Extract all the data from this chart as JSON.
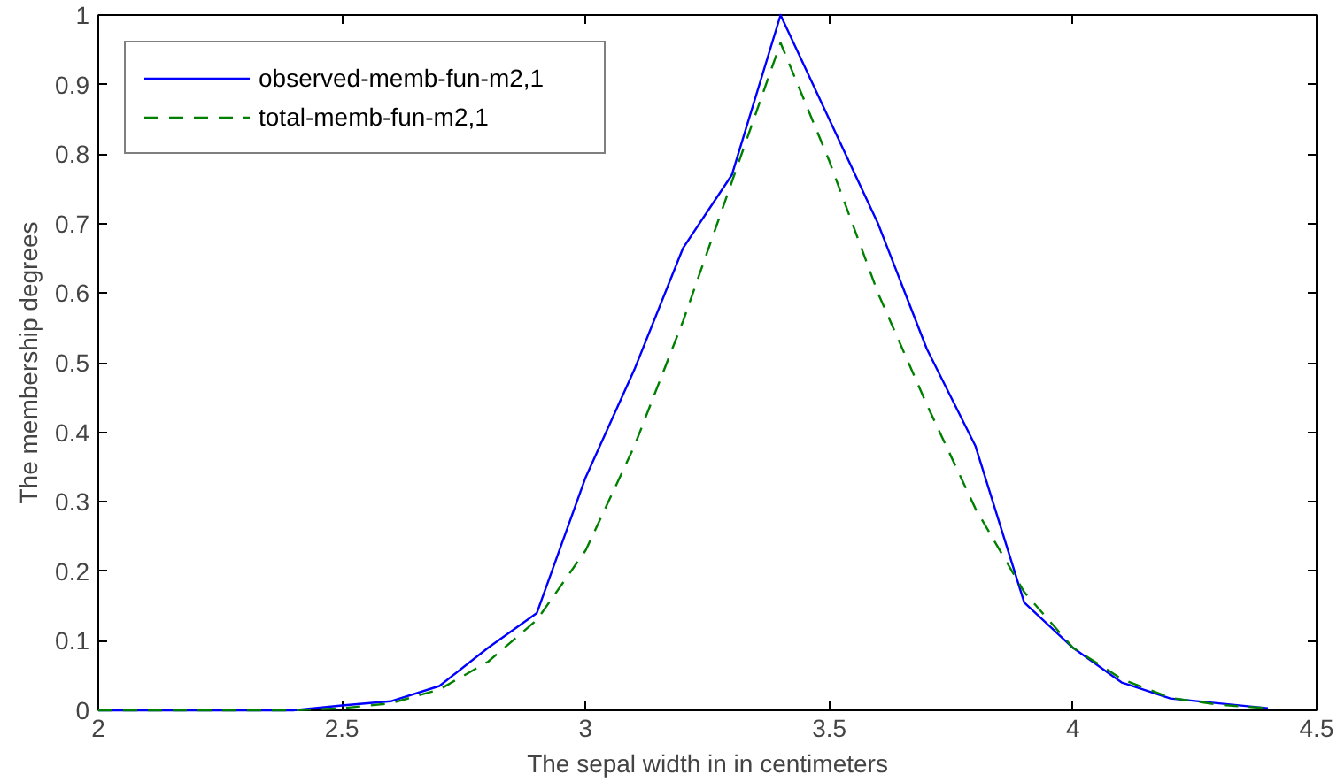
{
  "chart_data": {
    "type": "line",
    "xlabel": "The sepal width in in centimeters",
    "ylabel": "The membership degrees",
    "x": [
      2.0,
      2.1,
      2.2,
      2.3,
      2.4,
      2.5,
      2.6,
      2.7,
      2.8,
      2.9,
      3.0,
      3.1,
      3.2,
      3.3,
      3.4,
      3.5,
      3.6,
      3.7,
      3.8,
      3.9,
      4.0,
      4.1,
      4.2,
      4.3,
      4.4
    ],
    "series": [
      {
        "name": "observed-memb-fun-m2,1",
        "color": "#0000ff",
        "line_style": "solid",
        "values": [
          0,
          0,
          0,
          0,
          0,
          0.007,
          0.013,
          0.035,
          0.09,
          0.14,
          0.335,
          0.49,
          0.665,
          0.77,
          1.0,
          0.85,
          0.7,
          0.52,
          0.38,
          0.155,
          0.09,
          0.04,
          0.017,
          0.01,
          0.003
        ]
      },
      {
        "name": "total-memb-fun-m2,1",
        "color": "#008000",
        "line_style": "dashed",
        "values": [
          0,
          0,
          0,
          0,
          0,
          0.003,
          0.01,
          0.03,
          0.07,
          0.13,
          0.23,
          0.38,
          0.56,
          0.76,
          0.96,
          0.79,
          0.6,
          0.44,
          0.29,
          0.17,
          0.09,
          0.045,
          0.018,
          0.008,
          0.003
        ]
      }
    ],
    "xlim": [
      2,
      4.5
    ],
    "ylim": [
      0,
      1
    ],
    "xticks": [
      2,
      2.5,
      3,
      3.5,
      4,
      4.5
    ],
    "yticks": [
      0,
      0.1,
      0.2,
      0.3,
      0.4,
      0.5,
      0.6,
      0.7,
      0.8,
      0.9,
      1
    ],
    "grid": false,
    "legend": "top left",
    "marker": "none"
  }
}
